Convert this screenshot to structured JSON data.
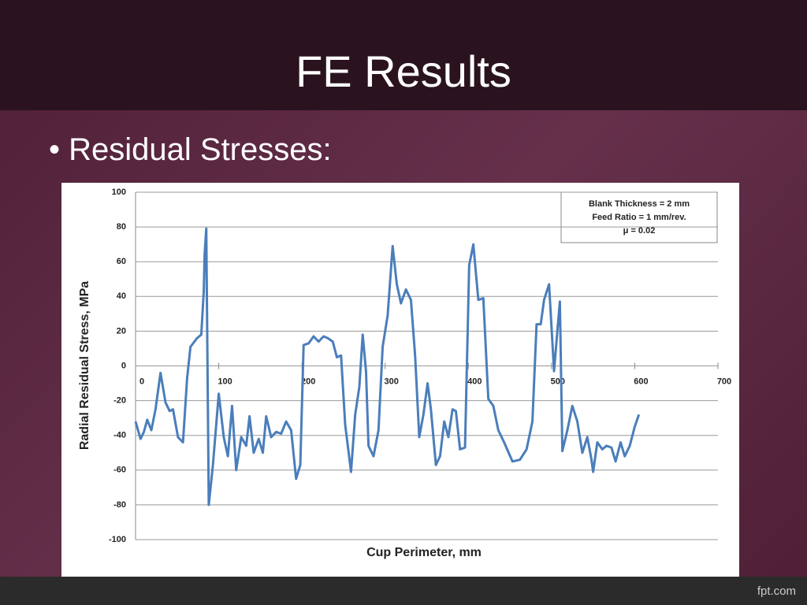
{
  "slide": {
    "title": "FE Results",
    "bullet": "Residual Stresses:",
    "footer": "fpt.com"
  },
  "chart_data": {
    "type": "line",
    "xlabel": "Cup Perimeter, mm",
    "ylabel": "Radial Residual Stress, MPa",
    "annotations": [
      "Blank Thickness = 2 mm",
      "Feed Ratio = 1 mm/rev.",
      "μ = 0.02"
    ],
    "xlim": [
      0,
      700
    ],
    "xticks": [
      0,
      100,
      200,
      300,
      400,
      500,
      600,
      700
    ],
    "ylim": [
      -100,
      100
    ],
    "yticks": [
      -100,
      -80,
      -60,
      -40,
      -20,
      0,
      20,
      40,
      60,
      80,
      100
    ],
    "grid": true,
    "x": [
      0,
      6,
      10,
      14,
      19,
      24,
      30,
      36,
      41,
      45,
      51,
      57,
      62,
      66,
      74,
      79,
      82,
      83,
      85,
      88,
      93,
      100,
      106,
      111,
      116,
      121,
      127,
      133,
      137,
      142,
      148,
      153,
      157,
      163,
      169,
      175,
      181,
      187,
      193,
      198,
      202,
      208,
      214,
      220,
      226,
      231,
      237,
      242,
      247,
      252,
      259,
      264,
      269,
      273,
      277,
      280,
      286,
      292,
      297,
      303,
      309,
      314,
      319,
      325,
      331,
      336,
      341,
      346,
      351,
      355,
      361,
      366,
      371,
      376,
      381,
      385,
      390,
      396,
      401,
      406,
      412,
      418,
      424,
      430,
      436,
      443,
      453,
      462,
      470,
      477,
      482,
      487,
      491,
      497,
      503,
      507,
      510,
      513,
      519,
      525,
      531,
      537,
      543,
      548,
      550,
      555,
      561,
      566,
      572,
      577,
      583,
      588,
      594,
      600,
      605
    ],
    "series": [
      {
        "name": "Radial Residual Stress",
        "color": "#4a7ebb",
        "values": [
          -32,
          -42,
          -38,
          -31,
          -37,
          -25,
          -4,
          -21,
          -26,
          -25,
          -41,
          -44,
          -7,
          11,
          16,
          18,
          43,
          64,
          79,
          -80,
          -57,
          -16,
          -41,
          -52,
          -23,
          -60,
          -41,
          -46,
          -29,
          -50,
          -42,
          -50,
          -29,
          -41,
          -38,
          -39,
          -32,
          -37,
          -65,
          -57,
          12,
          13,
          17,
          14,
          17,
          16,
          14,
          5,
          6,
          -34,
          -61,
          -28,
          -12,
          18,
          -3,
          -46,
          -52,
          -37,
          11,
          29,
          69,
          47,
          36,
          44,
          38,
          6,
          -41,
          -28,
          -10,
          -25,
          -57,
          -52,
          -32,
          -41,
          -25,
          -26,
          -48,
          -47,
          58,
          70,
          38,
          39,
          -19,
          -23,
          -37,
          -44,
          -55,
          -54,
          -48,
          -32,
          24,
          24,
          38,
          47,
          -3,
          20,
          37,
          -49,
          -37,
          -23,
          -32,
          -50,
          -41,
          -54,
          -61,
          -44,
          -48,
          -46,
          -47,
          -55,
          -44,
          -52,
          -46,
          -35,
          -28
        ]
      }
    ]
  }
}
